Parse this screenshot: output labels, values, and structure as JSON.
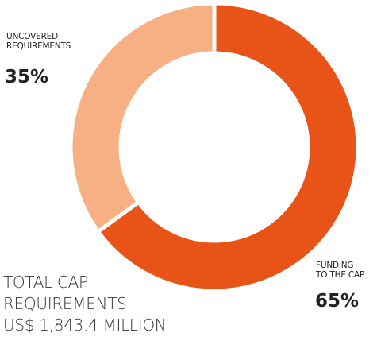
{
  "chart_data": {
    "type": "pie",
    "categories": [
      "FUNDING\nTO THE CAP",
      "UNCOVERED\nREQUIREMENTS"
    ],
    "values": [
      65,
      35
    ],
    "value_labels": [
      "65%",
      "35%"
    ],
    "colors": [
      "#e85318",
      "#f6b084"
    ],
    "annotation": "TOTAL CAP\nREQUIREMENTS\nUS$ 1,843.4 MILLION"
  }
}
